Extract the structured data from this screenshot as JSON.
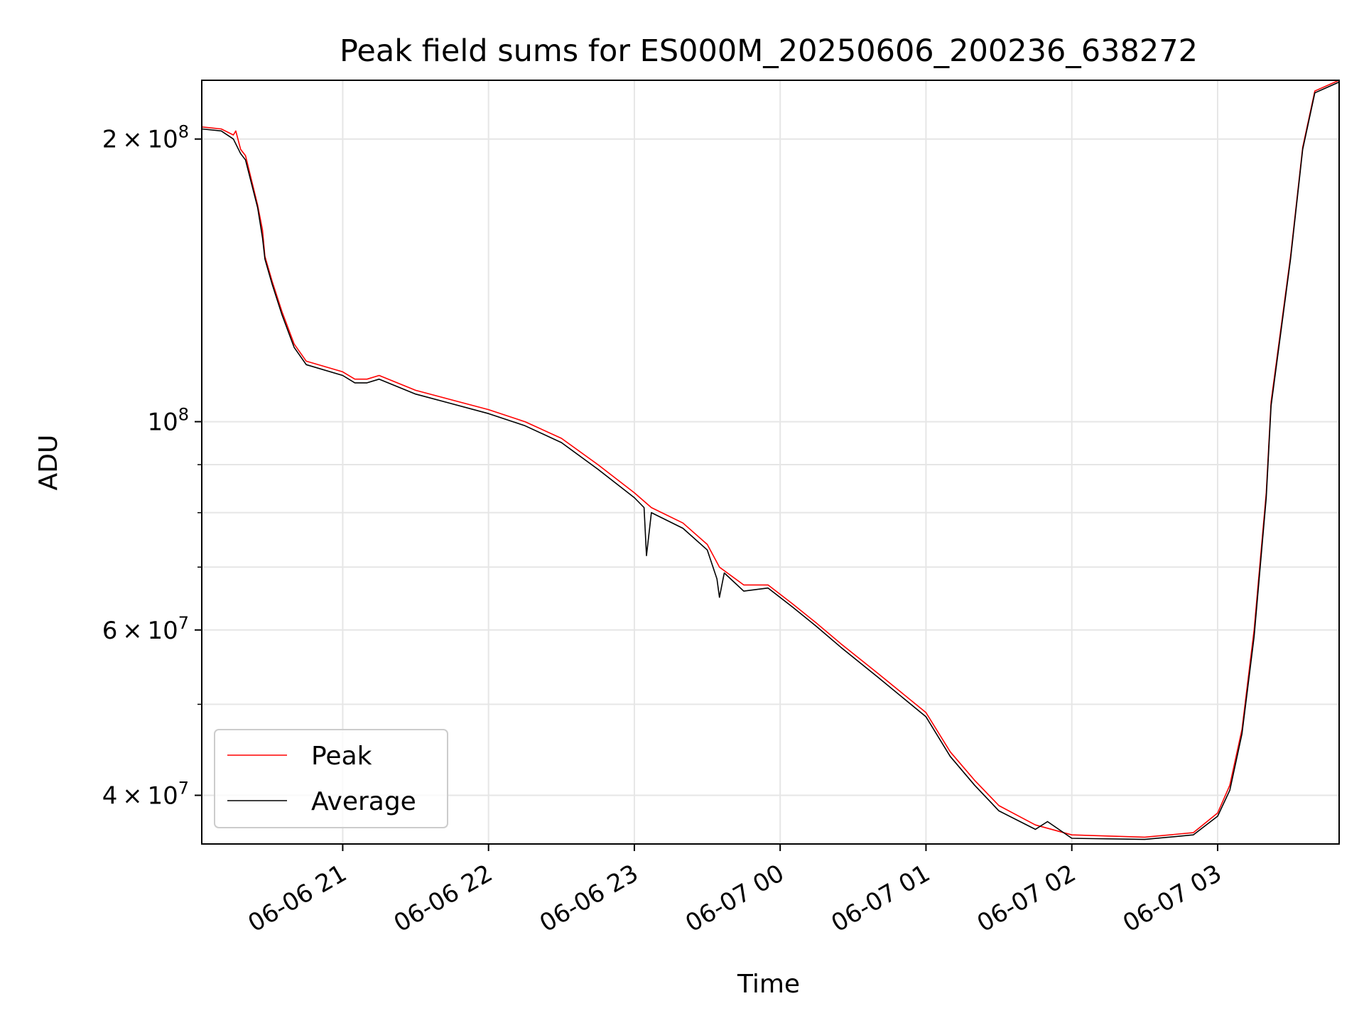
{
  "chart_data": {
    "type": "line",
    "title": "Peak field sums for ES000M_20250606_200236_638272",
    "xlabel": "Time",
    "ylabel": "ADU",
    "yscale": "log",
    "ylim": [
      35500000,
      231000000
    ],
    "xlim": [
      "2025-06-06 20:02",
      "2025-06-07 03:50"
    ],
    "grid": true,
    "legend_position": "lower-left",
    "x_ticks": [
      {
        "t": "2025-06-06 21:00",
        "label": "06-06 21"
      },
      {
        "t": "2025-06-06 22:00",
        "label": "06-06 22"
      },
      {
        "t": "2025-06-06 23:00",
        "label": "06-06 23"
      },
      {
        "t": "2025-06-07 00:00",
        "label": "06-07 00"
      },
      {
        "t": "2025-06-07 01:00",
        "label": "06-07 01"
      },
      {
        "t": "2025-06-07 02:00",
        "label": "06-07 02"
      },
      {
        "t": "2025-06-07 03:00",
        "label": "06-07 03"
      }
    ],
    "y_ticks": [
      {
        "value": 200000000,
        "mantissa": "2",
        "exp": "8"
      },
      {
        "value": 100000000,
        "mantissa": "",
        "exp": "8"
      },
      {
        "value": 60000000,
        "mantissa": "6",
        "exp": "7"
      },
      {
        "value": 40000000,
        "mantissa": "4",
        "exp": "7"
      }
    ],
    "y_minor_ticks": [
      50000000,
      70000000,
      80000000,
      90000000
    ],
    "series": [
      {
        "name": "Peak",
        "color": "#ff0000",
        "points": [
          [
            "2025-06-06 20:02",
            206000000
          ],
          [
            "2025-06-06 20:10",
            205000000
          ],
          [
            "2025-06-06 20:15",
            202000000
          ],
          [
            "2025-06-06 20:16",
            204000000
          ],
          [
            "2025-06-06 20:18",
            195000000
          ],
          [
            "2025-06-06 20:20",
            192000000
          ],
          [
            "2025-06-06 20:25",
            170000000
          ],
          [
            "2025-06-06 20:27",
            160000000
          ],
          [
            "2025-06-06 20:28",
            150000000
          ],
          [
            "2025-06-06 20:31",
            141000000
          ],
          [
            "2025-06-06 20:35",
            131000000
          ],
          [
            "2025-06-06 20:40",
            121000000
          ],
          [
            "2025-06-06 20:45",
            116000000
          ],
          [
            "2025-06-06 21:00",
            113000000
          ],
          [
            "2025-06-06 21:05",
            111000000
          ],
          [
            "2025-06-06 21:10",
            111000000
          ],
          [
            "2025-06-06 21:15",
            112000000
          ],
          [
            "2025-06-06 21:30",
            108000000
          ],
          [
            "2025-06-06 22:00",
            103000000
          ],
          [
            "2025-06-06 22:15",
            100000000
          ],
          [
            "2025-06-06 22:30",
            96000000
          ],
          [
            "2025-06-06 22:45",
            90000000
          ],
          [
            "2025-06-06 23:00",
            84000000
          ],
          [
            "2025-06-06 23:07",
            81000000
          ],
          [
            "2025-06-06 23:20",
            78000000
          ],
          [
            "2025-06-06 23:30",
            74000000
          ],
          [
            "2025-06-06 23:35",
            70000000
          ],
          [
            "2025-06-06 23:45",
            67000000
          ],
          [
            "2025-06-06 23:55",
            67000000
          ],
          [
            "2025-06-07 00:05",
            64000000
          ],
          [
            "2025-06-07 00:15",
            61000000
          ],
          [
            "2025-06-07 00:25",
            58000000
          ],
          [
            "2025-06-07 00:40",
            54000000
          ],
          [
            "2025-06-07 01:00",
            49000000
          ],
          [
            "2025-06-07 01:10",
            44500000
          ],
          [
            "2025-06-07 01:20",
            41500000
          ],
          [
            "2025-06-07 01:30",
            39000000
          ],
          [
            "2025-06-07 01:45",
            37200000
          ],
          [
            "2025-06-07 02:00",
            36300000
          ],
          [
            "2025-06-07 02:30",
            36100000
          ],
          [
            "2025-06-07 02:50",
            36500000
          ],
          [
            "2025-06-07 03:00",
            38300000
          ],
          [
            "2025-06-07 03:05",
            41000000
          ],
          [
            "2025-06-07 03:10",
            47000000
          ],
          [
            "2025-06-07 03:15",
            60000000
          ],
          [
            "2025-06-07 03:20",
            84000000
          ],
          [
            "2025-06-07 03:22",
            105000000
          ],
          [
            "2025-06-07 03:30",
            150000000
          ],
          [
            "2025-06-07 03:35",
            196000000
          ],
          [
            "2025-06-07 03:40",
            225000000
          ],
          [
            "2025-06-07 03:50",
            231000000
          ]
        ]
      },
      {
        "name": "Average",
        "color": "#000000",
        "points": [
          [
            "2025-06-06 20:02",
            205000000
          ],
          [
            "2025-06-06 20:10",
            204000000
          ],
          [
            "2025-06-06 20:15",
            200000000
          ],
          [
            "2025-06-06 20:18",
            193000000
          ],
          [
            "2025-06-06 20:20",
            190000000
          ],
          [
            "2025-06-06 20:25",
            169000000
          ],
          [
            "2025-06-06 20:27",
            157000000
          ],
          [
            "2025-06-06 20:28",
            149000000
          ],
          [
            "2025-06-06 20:31",
            140000000
          ],
          [
            "2025-06-06 20:35",
            130000000
          ],
          [
            "2025-06-06 20:40",
            120000000
          ],
          [
            "2025-06-06 20:45",
            115000000
          ],
          [
            "2025-06-06 21:00",
            112000000
          ],
          [
            "2025-06-06 21:05",
            110000000
          ],
          [
            "2025-06-06 21:10",
            110000000
          ],
          [
            "2025-06-06 21:15",
            111000000
          ],
          [
            "2025-06-06 21:30",
            107000000
          ],
          [
            "2025-06-06 22:00",
            102000000
          ],
          [
            "2025-06-06 22:15",
            99000000
          ],
          [
            "2025-06-06 22:30",
            95000000
          ],
          [
            "2025-06-06 22:45",
            89000000
          ],
          [
            "2025-06-06 23:00",
            83000000
          ],
          [
            "2025-06-06 23:04",
            81000000
          ],
          [
            "2025-06-06 23:05",
            72000000
          ],
          [
            "2025-06-06 23:07",
            80000000
          ],
          [
            "2025-06-06 23:20",
            77000000
          ],
          [
            "2025-06-06 23:30",
            73000000
          ],
          [
            "2025-06-06 23:34",
            68000000
          ],
          [
            "2025-06-06 23:35",
            65000000
          ],
          [
            "2025-06-06 23:37",
            69000000
          ],
          [
            "2025-06-06 23:45",
            66000000
          ],
          [
            "2025-06-06 23:55",
            66500000
          ],
          [
            "2025-06-07 00:05",
            63500000
          ],
          [
            "2025-06-07 00:15",
            60500000
          ],
          [
            "2025-06-07 00:25",
            57500000
          ],
          [
            "2025-06-07 00:40",
            53500000
          ],
          [
            "2025-06-07 01:00",
            48500000
          ],
          [
            "2025-06-07 01:10",
            44000000
          ],
          [
            "2025-06-07 01:20",
            41000000
          ],
          [
            "2025-06-07 01:30",
            38500000
          ],
          [
            "2025-06-07 01:45",
            36800000
          ],
          [
            "2025-06-07 01:50",
            37500000
          ],
          [
            "2025-06-07 02:00",
            36000000
          ],
          [
            "2025-06-07 02:30",
            35900000
          ],
          [
            "2025-06-07 02:50",
            36300000
          ],
          [
            "2025-06-07 03:00",
            38000000
          ],
          [
            "2025-06-07 03:05",
            40500000
          ],
          [
            "2025-06-07 03:10",
            46500000
          ],
          [
            "2025-06-07 03:15",
            59000000
          ],
          [
            "2025-06-07 03:20",
            83000000
          ],
          [
            "2025-06-07 03:22",
            104000000
          ],
          [
            "2025-06-07 03:30",
            149000000
          ],
          [
            "2025-06-07 03:35",
            195000000
          ],
          [
            "2025-06-07 03:40",
            224000000
          ],
          [
            "2025-06-07 03:50",
            230000000
          ]
        ]
      }
    ]
  }
}
